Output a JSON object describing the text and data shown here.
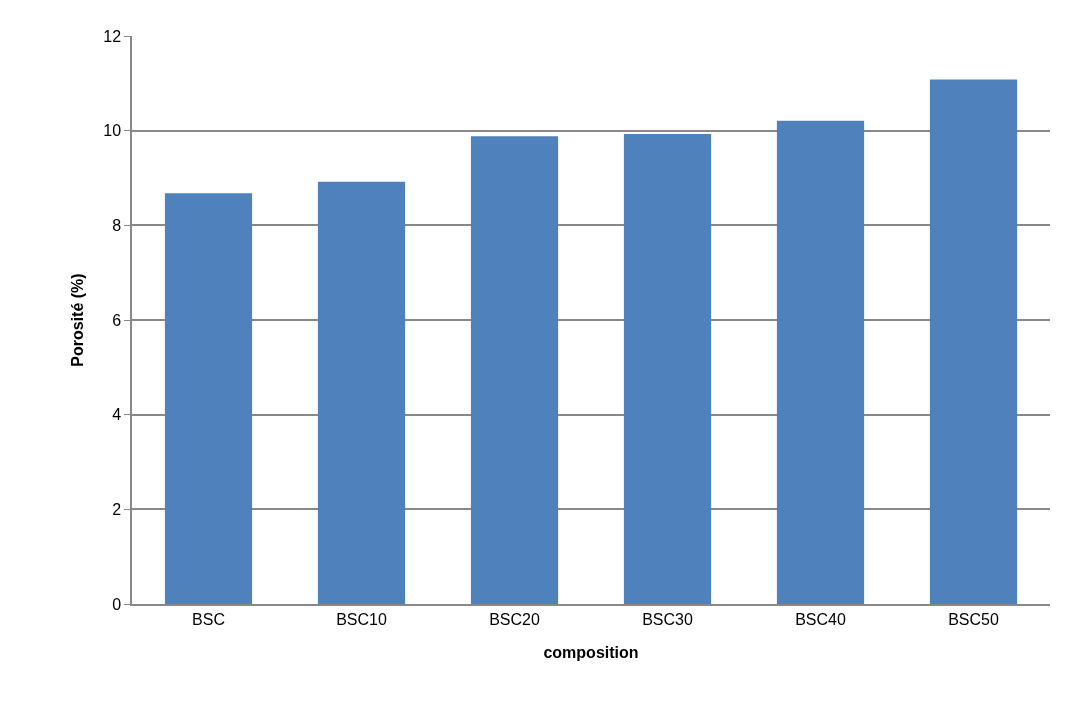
{
  "chart_data": {
    "type": "bar",
    "xlabel": "composition",
    "ylabel": "Porosité (%)",
    "categories": [
      "BSC",
      "BSC10",
      "BSC20",
      "BSC30",
      "BSC40",
      "BSC50"
    ],
    "values": [
      8.68,
      8.92,
      9.88,
      9.93,
      10.21,
      11.08
    ],
    "color": "#4f81bd",
    "ylim": [
      0,
      12
    ],
    "yticks": [
      0,
      2,
      4,
      6,
      8,
      10,
      12
    ],
    "grid": "y",
    "legend": false
  }
}
